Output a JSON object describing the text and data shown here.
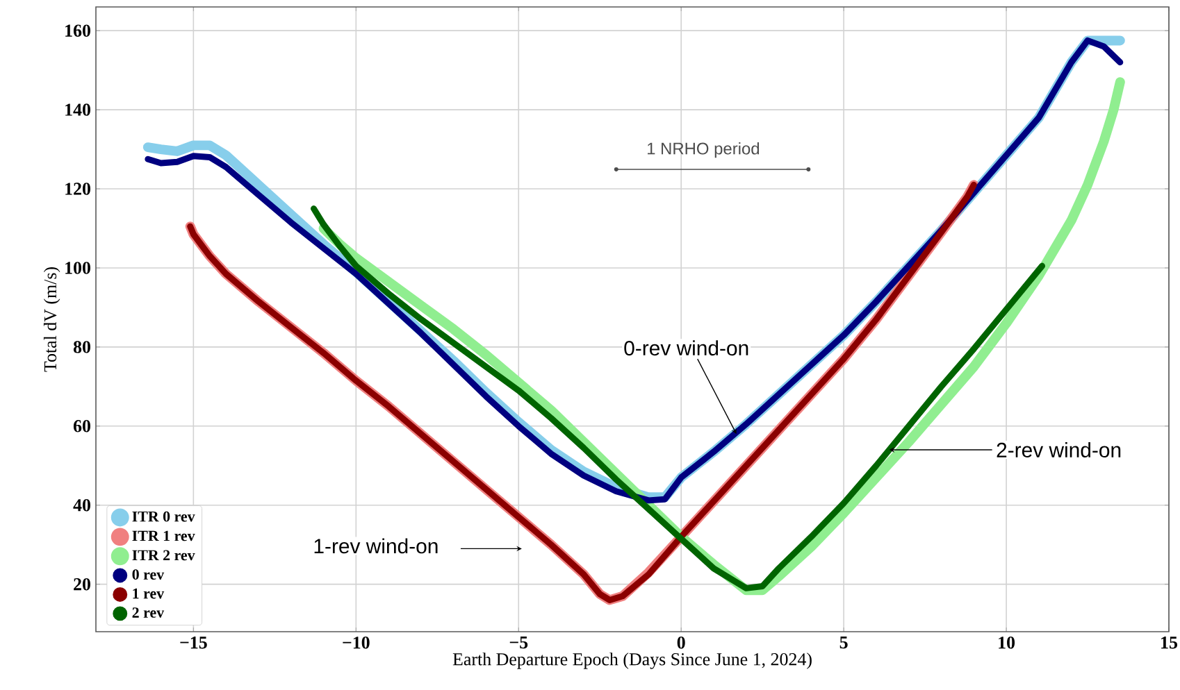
{
  "chart_data": {
    "type": "line",
    "xlabel": "Earth Departure Epoch (Days Since June 1, 2024)",
    "ylabel": "Total dV (m/s)",
    "xlim": [
      -18,
      15
    ],
    "ylim": [
      8,
      166
    ],
    "xticks": [
      {
        "value": -15,
        "label": "−15"
      },
      {
        "value": -10,
        "label": "−10"
      },
      {
        "value": -5,
        "label": "−5"
      },
      0,
      5,
      10,
      15
    ],
    "yticks": [
      20,
      40,
      60,
      80,
      100,
      120,
      140,
      160
    ],
    "grid": true,
    "legend": "bottom left",
    "series": [
      {
        "name": "ITR 0 rev",
        "color": "#87ceeb",
        "x": [
          -16.4,
          -16,
          -15.5,
          -15,
          -14.5,
          -14,
          -13,
          -12,
          -11,
          -10,
          -9,
          -8,
          -7,
          -6,
          -5,
          -4,
          -3,
          -2,
          -1,
          -0.5,
          0,
          1,
          2,
          3,
          4,
          5,
          6,
          7,
          8,
          9,
          10,
          11,
          12,
          12.5,
          13,
          13.5
        ],
        "values": [
          130.5,
          130,
          129.5,
          131,
          131,
          128.5,
          121,
          113.5,
          106,
          99,
          91.5,
          84,
          76.5,
          68.5,
          61,
          54,
          48.5,
          44.5,
          42,
          42,
          47,
          53.5,
          60.5,
          68,
          75.5,
          83,
          91.5,
          100.5,
          109.5,
          119,
          128.5,
          138,
          152,
          157.5,
          157.5,
          157.5
        ]
      },
      {
        "name": "ITR 1 rev",
        "color": "#f08080",
        "x": [
          -15.1,
          -15,
          -14.5,
          -14,
          -13,
          -12,
          -11,
          -10,
          -9,
          -8,
          -7,
          -6,
          -5,
          -4,
          -3,
          -2.5,
          -2.2,
          -1.8,
          -1,
          0,
          1,
          2,
          3,
          4,
          5,
          6,
          7,
          8,
          8.8,
          9
        ],
        "values": [
          110.5,
          108.5,
          103,
          98.5,
          91.5,
          85,
          78.5,
          71.5,
          65,
          58,
          51,
          44,
          37,
          30,
          22.5,
          17.5,
          16,
          17,
          23,
          32,
          41,
          50,
          59,
          68,
          77,
          87,
          98,
          109,
          118,
          121
        ]
      },
      {
        "name": "ITR 2 rev",
        "color": "#90ee90",
        "x": [
          -11,
          -10.5,
          -10,
          -9,
          -8,
          -7,
          -6,
          -5,
          -4,
          -3,
          -2,
          -1,
          0,
          1,
          2,
          2.5,
          3,
          4,
          5,
          6,
          7,
          8,
          9,
          10,
          11,
          12,
          12.5,
          13,
          13.3,
          13.5
        ],
        "values": [
          110,
          106,
          102.5,
          96.5,
          90.5,
          84.5,
          78,
          71,
          64,
          56,
          48,
          40,
          32,
          25,
          18.5,
          18.5,
          22,
          29.5,
          38,
          47,
          56,
          65.5,
          75,
          86,
          98,
          112,
          121,
          132,
          140,
          147
        ]
      },
      {
        "name": "0 rev",
        "color": "#000080",
        "x": [
          -16.4,
          -16,
          -15.5,
          -15,
          -14.5,
          -14,
          -13,
          -12,
          -11,
          -10,
          -9,
          -8,
          -7,
          -6,
          -5,
          -4,
          -3,
          -2,
          -1,
          -0.5,
          0,
          1,
          2,
          3,
          4,
          5,
          6,
          7,
          8,
          9,
          10,
          11,
          12,
          12.5,
          13,
          13.5
        ],
        "values": [
          127.5,
          126.5,
          126.8,
          128.3,
          128,
          125.5,
          118.5,
          111.5,
          105,
          98.5,
          91,
          83.5,
          75.5,
          67.5,
          60,
          53,
          47.5,
          43.5,
          41.2,
          41.5,
          47,
          53.5,
          60.5,
          68,
          75.5,
          83,
          91.5,
          100.5,
          109.5,
          119,
          128.5,
          138,
          152,
          157.5,
          156,
          152
        ]
      },
      {
        "name": "1 rev",
        "color": "#8b0000",
        "x": [
          -15.1,
          -15,
          -14.5,
          -14,
          -13,
          -12,
          -11,
          -10,
          -9,
          -8,
          -7,
          -6,
          -5,
          -4,
          -3,
          -2.5,
          -2.2,
          -1.8,
          -1,
          0,
          1,
          2,
          3,
          4,
          5,
          6,
          7,
          8,
          8.8,
          9
        ],
        "values": [
          110.5,
          108.5,
          103,
          98.5,
          91.5,
          85,
          78.5,
          71.5,
          65,
          58,
          51,
          44,
          37,
          30,
          22.5,
          17.5,
          16,
          17,
          22.5,
          32,
          41,
          50,
          59,
          68,
          77,
          87,
          98,
          109,
          118,
          121
        ]
      },
      {
        "name": "2 rev",
        "color": "#006400",
        "x": [
          -11.3,
          -11,
          -10.5,
          -10,
          -9,
          -8,
          -7,
          -6,
          -5,
          -4,
          -3,
          -2,
          -1,
          0,
          1,
          2,
          2.5,
          3,
          4,
          5,
          6,
          7,
          8,
          9,
          10,
          11.1
        ],
        "values": [
          115,
          111,
          105.5,
          100.5,
          93.5,
          87,
          81,
          75,
          69,
          62,
          54.5,
          46.5,
          39,
          31.5,
          24,
          19,
          19.5,
          24,
          32,
          40.5,
          50,
          60,
          70,
          79.5,
          89.5,
          100.5
        ]
      }
    ],
    "annotations": [
      "1 NRHO period",
      {
        "text": "0-rev wind-on",
        "x": 1.7,
        "y": 58
      },
      {
        "text": "1-rev wind-on",
        "x": -4.9,
        "y": 29
      },
      {
        "text": "2-rev wind-on",
        "x": 6.4,
        "y": 54
      }
    ]
  }
}
